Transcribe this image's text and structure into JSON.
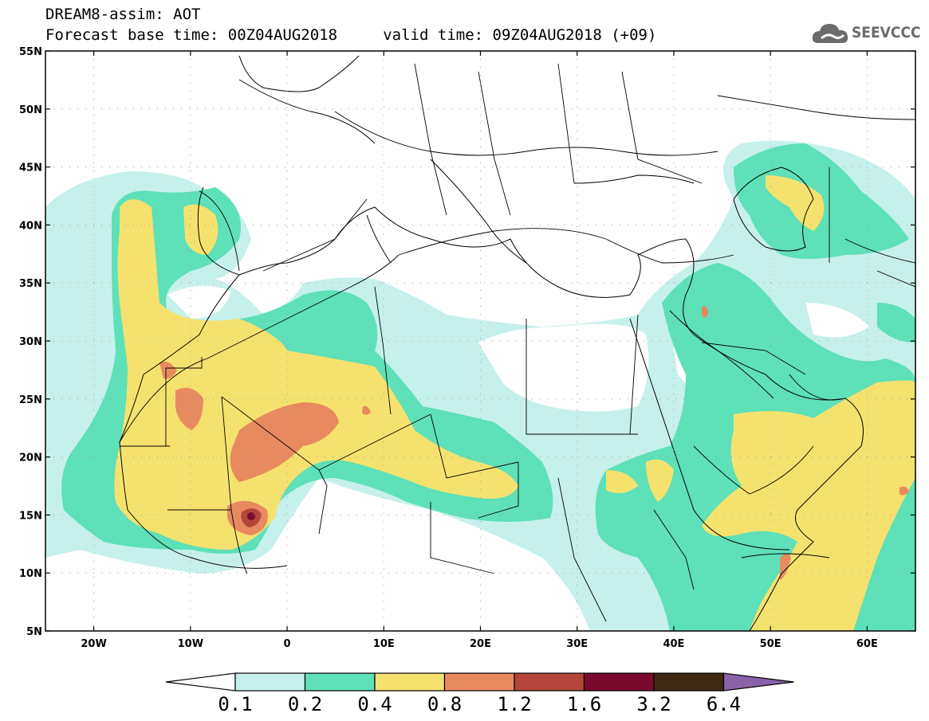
{
  "title_line1": "DREAM8-assim: AOT",
  "title_line2": "Forecast base time: 00Z04AUG2018     valid time: 09Z04AUG2018 (+09)",
  "logo_text": "SEEVCCC",
  "map": {
    "lon_range": [
      -25,
      65
    ],
    "lat_range": [
      5,
      55
    ],
    "lat_ticks": [
      "5N",
      "10N",
      "15N",
      "20N",
      "25N",
      "30N",
      "35N",
      "40N",
      "45N",
      "50N",
      "55N"
    ],
    "lon_ticks": [
      "20W",
      "10W",
      "0",
      "10E",
      "20E",
      "30E",
      "40E",
      "50E",
      "60E"
    ],
    "frame_color": "#000000",
    "land_color": "#ffffff",
    "border_color": "#000000"
  },
  "legend": {
    "labels": [
      "0.1",
      "0.2",
      "0.4",
      "0.8",
      "1.2",
      "1.6",
      "3.2",
      "6.4"
    ],
    "colors": [
      "#c6f0ec",
      "#5ee0b8",
      "#f5e26e",
      "#e88a60",
      "#b5453a",
      "#7a0a2e",
      "#3e2a14",
      "#8a62a8"
    ],
    "under_color": "#ffffff",
    "over_color": "#8a62a8"
  }
}
